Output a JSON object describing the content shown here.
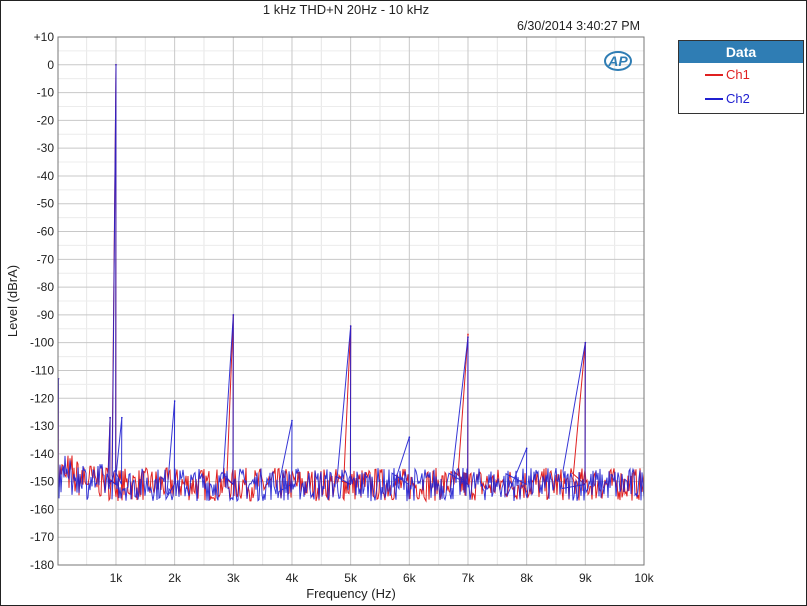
{
  "chart_data": {
    "type": "line",
    "title": "1 kHz THD+N 20Hz - 10 kHz",
    "timestamp": "6/30/2014 3:40:27 PM",
    "xlabel": "Frequency (Hz)",
    "ylabel": "Level (dBrA)",
    "xlim": [
      20,
      10000
    ],
    "ylim": [
      -180,
      10
    ],
    "grid": true,
    "legend_placement": "right",
    "legend_title": "Data",
    "x_ticks": [
      {
        "v": 1000,
        "label": "1k"
      },
      {
        "v": 2000,
        "label": "2k"
      },
      {
        "v": 3000,
        "label": "3k"
      },
      {
        "v": 4000,
        "label": "4k"
      },
      {
        "v": 5000,
        "label": "5k"
      },
      {
        "v": 6000,
        "label": "6k"
      },
      {
        "v": 7000,
        "label": "7k"
      },
      {
        "v": 8000,
        "label": "8k"
      },
      {
        "v": 9000,
        "label": "9k"
      },
      {
        "v": 10000,
        "label": "10k"
      }
    ],
    "y_ticks": [
      {
        "v": 10,
        "label": "+10"
      },
      {
        "v": 0,
        "label": "0"
      },
      {
        "v": -10,
        "label": "-10"
      },
      {
        "v": -20,
        "label": "-20"
      },
      {
        "v": -30,
        "label": "-30"
      },
      {
        "v": -40,
        "label": "-40"
      },
      {
        "v": -50,
        "label": "-50"
      },
      {
        "v": -60,
        "label": "-60"
      },
      {
        "v": -70,
        "label": "-70"
      },
      {
        "v": -80,
        "label": "-80"
      },
      {
        "v": -90,
        "label": "-90"
      },
      {
        "v": -100,
        "label": "-100"
      },
      {
        "v": -110,
        "label": "-110"
      },
      {
        "v": -120,
        "label": "-120"
      },
      {
        "v": -130,
        "label": "-130"
      },
      {
        "v": -140,
        "label": "-140"
      },
      {
        "v": -150,
        "label": "-150"
      },
      {
        "v": -160,
        "label": "-160"
      },
      {
        "v": -170,
        "label": "-170"
      },
      {
        "v": -180,
        "label": "-180"
      }
    ],
    "noise_floor_db": -151,
    "series": [
      {
        "name": "Ch1",
        "color": "#e02020",
        "peaks": [
          [
            20,
            -113
          ],
          [
            900,
            -127
          ],
          [
            1000,
            0
          ],
          [
            3000,
            -90
          ],
          [
            5000,
            -94
          ],
          [
            7000,
            -97
          ],
          [
            9000,
            -100
          ]
        ]
      },
      {
        "name": "Ch2",
        "color": "#2020d0",
        "peaks": [
          [
            20,
            -113
          ],
          [
            900,
            -127
          ],
          [
            1000,
            0
          ],
          [
            1100,
            -127
          ],
          [
            2000,
            -121
          ],
          [
            3000,
            -90
          ],
          [
            4000,
            -128
          ],
          [
            5000,
            -94
          ],
          [
            6000,
            -134
          ],
          [
            7000,
            -98
          ],
          [
            8000,
            -138
          ],
          [
            9000,
            -100
          ]
        ]
      }
    ]
  }
}
